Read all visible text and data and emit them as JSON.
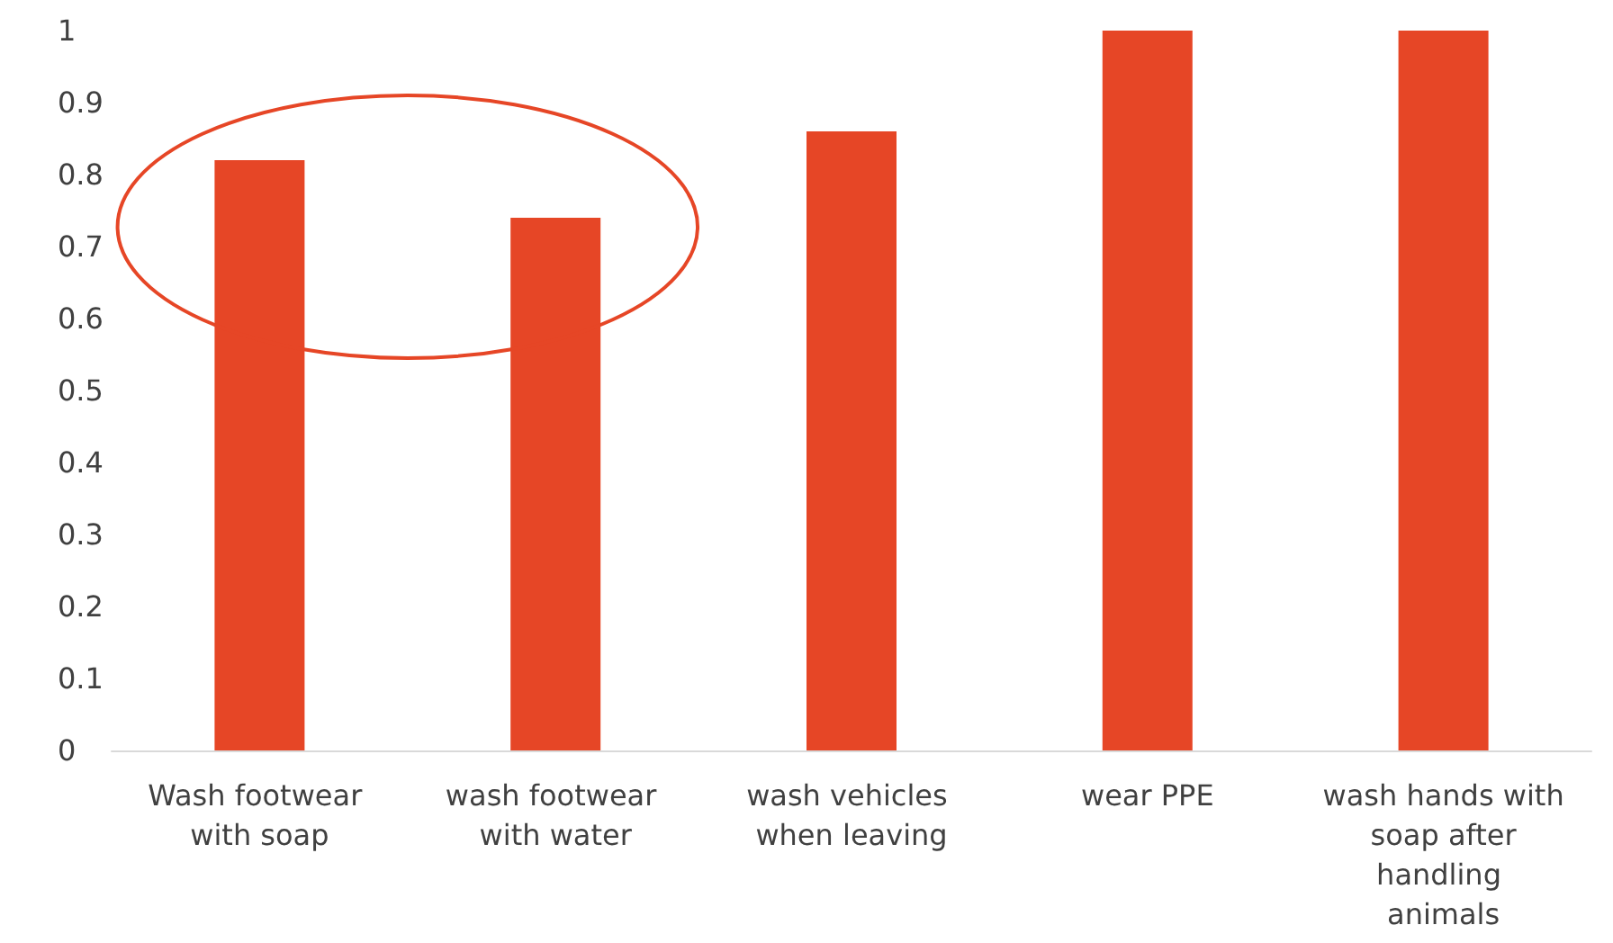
{
  "chart_data": {
    "type": "bar",
    "categories": [
      "Wash footwear with soap",
      "wash footwear with water",
      "wash vehicles when leaving",
      "wear PPE",
      "wash hands with soap after handling animals"
    ],
    "values": [
      0.82,
      0.74,
      0.86,
      1,
      1
    ],
    "color": "#e64626",
    "ylim": [
      0,
      1
    ],
    "yticks": [
      0,
      0.1,
      0.2,
      0.3,
      0.4,
      0.5,
      0.6,
      0.7,
      0.8,
      0.9,
      1
    ],
    "grid": false
  }
}
